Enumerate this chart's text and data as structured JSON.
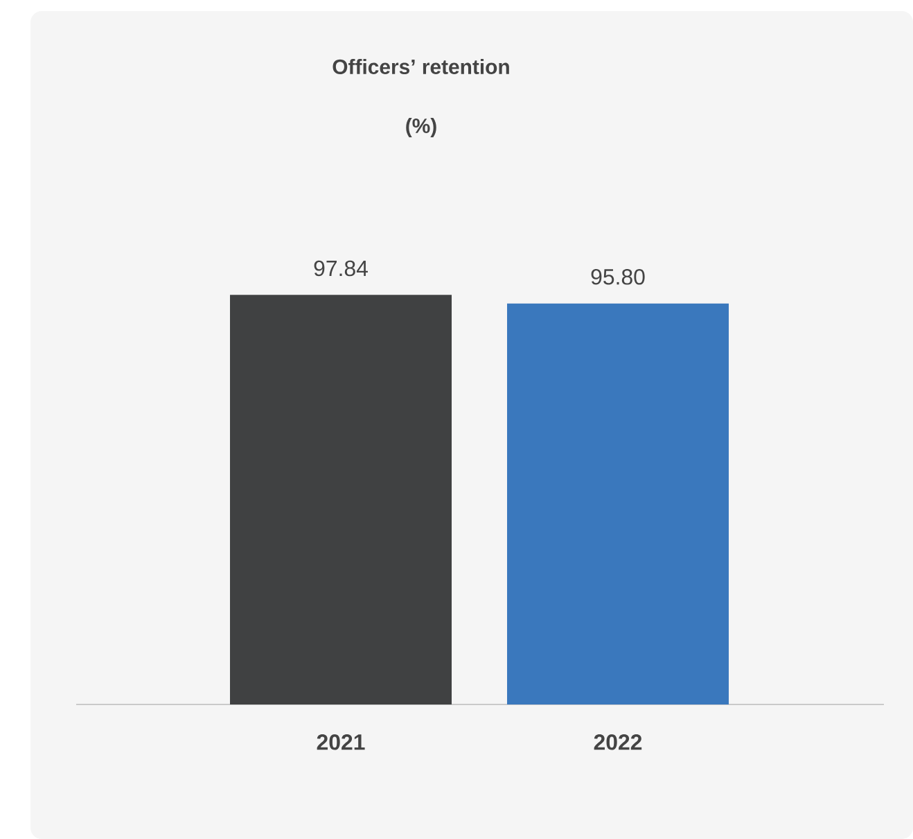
{
  "chart_data": {
    "type": "bar",
    "title": "Officers’ retention",
    "subtitle": "(%)",
    "categories": [
      "2021",
      "2022"
    ],
    "values": [
      97.84,
      95.8
    ],
    "value_labels": [
      "97.84",
      "95.80"
    ],
    "colors": [
      "#404142",
      "#3a78bd"
    ]
  }
}
